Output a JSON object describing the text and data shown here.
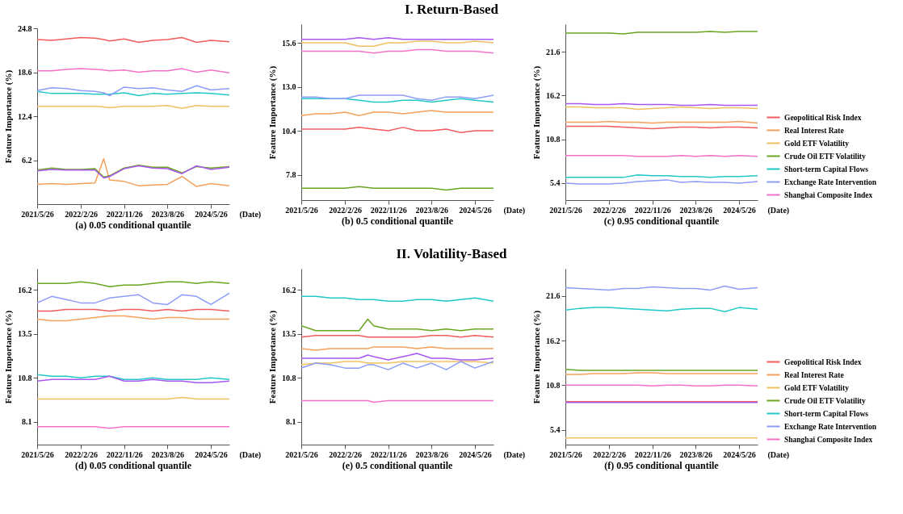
{
  "chart_data": [
    {
      "type": "line",
      "title": "(a) 0.05 conditional quantile",
      "xlabel": "(Date)",
      "ylabel": "Feature Importance (%)",
      "annotations": [
        "I. Return-Based"
      ],
      "x": [
        "2021-05-26",
        "2021-08-26",
        "2021-11-26",
        "2022-02-26",
        "2022-05-26",
        "2022-07-20",
        "2022-08-26",
        "2022-11-26",
        "2023-02-26",
        "2023-05-26",
        "2023-08-26",
        "2023-11-26",
        "2024-02-26",
        "2024-05-26",
        "2024-09-20"
      ],
      "xlim": [
        "2021-05-26",
        "2024-09-20"
      ],
      "xticks": [
        {
          "value": "2021-05-26",
          "label": "2021/5/26"
        },
        {
          "value": "2022-02-26",
          "label": "2022/2/26"
        },
        {
          "value": "2022-11-26",
          "label": "2022/11/26"
        },
        {
          "value": "2023-08-26",
          "label": "2023/8/26"
        },
        {
          "value": "2024-05-26",
          "label": "2024/5/26"
        }
      ],
      "ylim": [
        0,
        24.8
      ],
      "yticks": [
        6.2,
        12.4,
        18.6,
        24.8
      ],
      "series": [
        {
          "color": "#f25c5c",
          "values": [
            23.2,
            23.1,
            23.3,
            23.5,
            23.4,
            23.2,
            23.0,
            23.3,
            22.8,
            23.1,
            23.2,
            23.5,
            22.8,
            23.1,
            22.9
          ]
        },
        {
          "color": "#f5a05a",
          "values": [
            2.8,
            2.9,
            2.8,
            2.9,
            3.0,
            6.4,
            3.4,
            3.2,
            2.6,
            2.7,
            2.8,
            3.9,
            2.5,
            2.9,
            2.6
          ]
        },
        {
          "color": "#f0c060",
          "values": [
            13.8,
            13.8,
            13.8,
            13.8,
            13.8,
            13.7,
            13.6,
            13.8,
            13.8,
            13.8,
            13.9,
            13.5,
            13.9,
            13.8,
            13.8
          ]
        },
        {
          "color": "#6aa520",
          "values": [
            4.8,
            5.1,
            4.9,
            4.9,
            5.0,
            3.8,
            4.0,
            5.1,
            5.5,
            5.2,
            5.2,
            4.4,
            5.3,
            5.1,
            5.3
          ]
        },
        {
          "color": "#20c8c8",
          "values": [
            15.9,
            15.6,
            15.6,
            15.6,
            15.5,
            15.5,
            15.5,
            15.7,
            15.3,
            15.6,
            15.5,
            15.6,
            15.7,
            15.6,
            15.4
          ]
        },
        {
          "color": "#8c9cf8",
          "values": [
            16.0,
            16.4,
            16.3,
            16.0,
            15.9,
            15.7,
            15.3,
            16.5,
            16.3,
            16.4,
            16.1,
            15.9,
            16.7,
            16.1,
            16.3
          ]
        },
        {
          "color": "#a857f0",
          "values": [
            4.7,
            4.9,
            4.8,
            4.8,
            4.8,
            3.7,
            3.9,
            5.0,
            5.4,
            5.1,
            5.0,
            4.3,
            5.4,
            4.9,
            5.2
          ]
        },
        {
          "color": "#f570c8",
          "values": [
            18.8,
            18.8,
            19.0,
            19.1,
            19.0,
            18.9,
            18.8,
            18.9,
            18.6,
            18.8,
            18.8,
            19.1,
            18.6,
            18.9,
            18.5
          ]
        }
      ]
    },
    {
      "type": "line",
      "title": "(b) 0.5 conditional quantile",
      "xlabel": "(Date)",
      "ylabel": "Feature Importance (%)",
      "x": [
        "2021-05-26",
        "2021-08-26",
        "2021-11-26",
        "2022-02-26",
        "2022-05-26",
        "2022-08-26",
        "2022-11-26",
        "2023-02-26",
        "2023-05-26",
        "2023-08-26",
        "2023-11-26",
        "2024-02-26",
        "2024-05-26",
        "2024-09-20"
      ],
      "xlim": [
        "2021-05-26",
        "2024-09-20"
      ],
      "xticks": [
        {
          "value": "2021-05-26",
          "label": "2021/5/26"
        },
        {
          "value": "2022-02-26",
          "label": "2022/2/26"
        },
        {
          "value": "2022-11-26",
          "label": "2022/11/26"
        },
        {
          "value": "2023-08-26",
          "label": "2023/8/26"
        },
        {
          "value": "2024-05-26",
          "label": "2024/5/26"
        }
      ],
      "ylim": [
        6.3,
        16.7
      ],
      "yticks": [
        7.8,
        10.4,
        {
          "value": 13,
          "label": "13.0"
        },
        15.6
      ],
      "series": [
        {
          "color": "#f25c5c",
          "values": [
            10.5,
            10.5,
            10.5,
            10.5,
            10.6,
            10.5,
            10.4,
            10.6,
            10.4,
            10.4,
            10.5,
            10.3,
            10.4,
            10.4
          ]
        },
        {
          "color": "#f5a05a",
          "values": [
            11.3,
            11.4,
            11.4,
            11.5,
            11.3,
            11.5,
            11.5,
            11.4,
            11.5,
            11.6,
            11.5,
            11.5,
            11.5,
            11.5
          ]
        },
        {
          "color": "#f0c060",
          "values": [
            15.6,
            15.6,
            15.6,
            15.6,
            15.4,
            15.4,
            15.6,
            15.6,
            15.7,
            15.7,
            15.6,
            15.6,
            15.7,
            15.6
          ]
        },
        {
          "color": "#6aa520",
          "values": [
            7.0,
            7.0,
            7.0,
            7.0,
            7.1,
            7.0,
            7.0,
            7.0,
            7.0,
            7.0,
            6.9,
            7.0,
            7.0,
            7.0
          ]
        },
        {
          "color": "#20c8c8",
          "values": [
            12.3,
            12.3,
            12.3,
            12.3,
            12.2,
            12.1,
            12.1,
            12.2,
            12.2,
            12.1,
            12.2,
            12.3,
            12.2,
            12.1
          ]
        },
        {
          "color": "#8c9cf8",
          "values": [
            12.4,
            12.4,
            12.3,
            12.3,
            12.5,
            12.5,
            12.5,
            12.5,
            12.3,
            12.2,
            12.4,
            12.4,
            12.3,
            12.5
          ]
        },
        {
          "color": "#a857f0",
          "values": [
            15.8,
            15.8,
            15.8,
            15.8,
            15.9,
            15.8,
            15.9,
            15.8,
            15.8,
            15.8,
            15.8,
            15.8,
            15.8,
            15.8
          ]
        },
        {
          "color": "#f570c8",
          "values": [
            15.1,
            15.1,
            15.1,
            15.1,
            15.1,
            15.0,
            15.1,
            15.1,
            15.2,
            15.2,
            15.1,
            15.1,
            15.1,
            15.0
          ]
        }
      ]
    },
    {
      "type": "line",
      "title": "(c) 0.95 conditional quantile",
      "xlabel": "(Date)",
      "ylabel": "Feature Importance (%)",
      "legend": "right",
      "x": [
        "2021-05-26",
        "2021-08-26",
        "2021-11-26",
        "2022-02-26",
        "2022-05-26",
        "2022-08-26",
        "2022-11-26",
        "2023-02-26",
        "2023-05-26",
        "2023-08-26",
        "2023-11-26",
        "2024-02-26",
        "2024-05-26",
        "2024-09-20"
      ],
      "xlim": [
        "2021-05-26",
        "2024-09-20"
      ],
      "xticks": [
        {
          "value": "2021-05-26",
          "label": "2021/5/26"
        },
        {
          "value": "2022-02-26",
          "label": "2022/2/26"
        },
        {
          "value": "2022-11-26",
          "label": "2022/11/26"
        },
        {
          "value": "2023-08-26",
          "label": "2023/8/26"
        },
        {
          "value": "2024-05-26",
          "label": "2024/5/26"
        }
      ],
      "ylim": [
        3.3,
        25.0
      ],
      "yticks": [
        5.4,
        10.8,
        16.2,
        21.6
      ],
      "series": [
        {
          "name": "Geopolitical Risk Index",
          "color": "#f25c5c",
          "values": [
            12.4,
            12.4,
            12.4,
            12.4,
            12.3,
            12.2,
            12.1,
            12.2,
            12.3,
            12.3,
            12.2,
            12.3,
            12.3,
            12.2
          ]
        },
        {
          "name": "Real Interest Rate",
          "color": "#f5a05a",
          "values": [
            12.9,
            12.9,
            12.9,
            13.0,
            12.9,
            12.9,
            12.8,
            12.9,
            12.9,
            12.9,
            12.9,
            12.9,
            13.0,
            12.8
          ]
        },
        {
          "name": "Gold ETF Volatility",
          "color": "#f0c060",
          "values": [
            14.8,
            14.8,
            14.7,
            14.7,
            14.7,
            14.5,
            14.6,
            14.7,
            14.8,
            14.7,
            14.6,
            14.7,
            14.7,
            14.6
          ]
        },
        {
          "name": "Crude Oil ETF Volatility",
          "color": "#6aa520",
          "values": [
            23.9,
            23.9,
            23.9,
            23.9,
            23.8,
            24.0,
            24.0,
            24.0,
            24.0,
            24.0,
            24.1,
            24.0,
            24.1,
            24.1
          ]
        },
        {
          "name": "Short-term Capital Flows",
          "color": "#20c8c8",
          "values": [
            6.1,
            6.1,
            6.1,
            6.1,
            6.1,
            6.4,
            6.3,
            6.3,
            6.2,
            6.2,
            6.1,
            6.2,
            6.2,
            6.3
          ]
        },
        {
          "name": "Exchange Rate Intervention",
          "color": "#8c9cf8",
          "values": [
            5.4,
            5.3,
            5.3,
            5.3,
            5.4,
            5.6,
            5.7,
            5.8,
            5.5,
            5.6,
            5.5,
            5.5,
            5.4,
            5.6
          ]
        },
        {
          "color": "#a857f0",
          "values": [
            15.2,
            15.2,
            15.1,
            15.1,
            15.2,
            15.1,
            15.1,
            15.1,
            15.0,
            15.0,
            15.1,
            15.0,
            15.0,
            15.0
          ]
        },
        {
          "name": "Shanghai Composite Index",
          "color": "#f570c8",
          "values": [
            8.8,
            8.8,
            8.8,
            8.8,
            8.8,
            8.7,
            8.7,
            8.7,
            8.8,
            8.7,
            8.8,
            8.7,
            8.8,
            8.7
          ]
        }
      ]
    },
    {
      "type": "line",
      "title": "(d) 0.05 conditional quantile",
      "xlabel": "(Date)",
      "ylabel": "Feature Importance (%)",
      "annotations": [
        "II. Volatility-Based"
      ],
      "x": [
        "2021-05-26",
        "2021-08-26",
        "2021-11-26",
        "2022-02-26",
        "2022-05-26",
        "2022-08-26",
        "2022-11-26",
        "2023-02-26",
        "2023-05-26",
        "2023-08-26",
        "2023-11-26",
        "2024-02-26",
        "2024-05-26",
        "2024-09-20"
      ],
      "xlim": [
        "2021-05-26",
        "2024-09-20"
      ],
      "xticks": [
        {
          "value": "2021-05-26",
          "label": "2021/5/26"
        },
        {
          "value": "2022-02-26",
          "label": "2022/2/26"
        },
        {
          "value": "2022-11-26",
          "label": "2022/11/26"
        },
        {
          "value": "2023-08-26",
          "label": "2023/8/26"
        },
        {
          "value": "2024-05-26",
          "label": "2024/5/26"
        }
      ],
      "ylim": [
        6.7,
        17.5
      ],
      "yticks": [
        8.1,
        10.8,
        13.5,
        16.2
      ],
      "series": [
        {
          "color": "#f25c5c",
          "values": [
            14.9,
            14.9,
            15.0,
            15.0,
            15.0,
            14.9,
            15.0,
            15.0,
            14.9,
            15.0,
            14.9,
            15.0,
            15.0,
            14.9
          ]
        },
        {
          "color": "#f5a05a",
          "values": [
            14.4,
            14.3,
            14.3,
            14.4,
            14.5,
            14.6,
            14.6,
            14.5,
            14.4,
            14.5,
            14.5,
            14.4,
            14.4,
            14.4
          ]
        },
        {
          "color": "#f0c060",
          "values": [
            9.5,
            9.5,
            9.5,
            9.5,
            9.5,
            9.5,
            9.5,
            9.5,
            9.5,
            9.5,
            9.6,
            9.5,
            9.5,
            9.5
          ]
        },
        {
          "color": "#6aa520",
          "values": [
            16.6,
            16.6,
            16.6,
            16.7,
            16.6,
            16.4,
            16.5,
            16.5,
            16.6,
            16.7,
            16.7,
            16.6,
            16.7,
            16.6
          ]
        },
        {
          "color": "#20c8c8",
          "values": [
            11.0,
            10.9,
            10.9,
            10.8,
            10.9,
            10.9,
            10.7,
            10.7,
            10.8,
            10.7,
            10.7,
            10.7,
            10.8,
            10.7
          ]
        },
        {
          "color": "#8c9cf8",
          "values": [
            15.4,
            15.8,
            15.6,
            15.4,
            15.4,
            15.7,
            15.8,
            15.9,
            15.4,
            15.3,
            15.9,
            15.8,
            15.3,
            16.0
          ]
        },
        {
          "color": "#a857f0",
          "values": [
            10.6,
            10.7,
            10.7,
            10.7,
            10.7,
            10.9,
            10.6,
            10.6,
            10.7,
            10.6,
            10.6,
            10.5,
            10.5,
            10.6
          ]
        },
        {
          "color": "#f570c8",
          "values": [
            7.8,
            7.8,
            7.8,
            7.8,
            7.8,
            7.7,
            7.8,
            7.8,
            7.8,
            7.8,
            7.8,
            7.8,
            7.8,
            7.8
          ]
        }
      ]
    },
    {
      "type": "line",
      "title": "(e) 0.5 conditional quantile",
      "xlabel": "(Date)",
      "ylabel": "Feature Importance (%)",
      "x": [
        "2021-05-26",
        "2021-08-26",
        "2021-11-26",
        "2022-02-26",
        "2022-05-26",
        "2022-07-20",
        "2022-08-26",
        "2022-11-26",
        "2023-02-26",
        "2023-05-26",
        "2023-08-26",
        "2023-11-26",
        "2024-02-26",
        "2024-05-26",
        "2024-09-20"
      ],
      "xlim": [
        "2021-05-26",
        "2024-09-20"
      ],
      "xticks": [
        {
          "value": "2021-05-26",
          "label": "2021/5/26"
        },
        {
          "value": "2022-02-26",
          "label": "2022/2/26"
        },
        {
          "value": "2022-11-26",
          "label": "2022/11/26"
        },
        {
          "value": "2023-08-26",
          "label": "2023/8/26"
        },
        {
          "value": "2024-05-26",
          "label": "2024/5/26"
        }
      ],
      "ylim": [
        6.7,
        17.5
      ],
      "yticks": [
        8.1,
        10.8,
        13.5,
        16.2
      ],
      "series": [
        {
          "color": "#f25c5c",
          "values": [
            13.3,
            13.4,
            13.4,
            13.4,
            13.4,
            13.3,
            13.3,
            13.3,
            13.3,
            13.3,
            13.4,
            13.4,
            13.3,
            13.4,
            13.3
          ]
        },
        {
          "color": "#f5a05a",
          "values": [
            12.6,
            12.5,
            12.6,
            12.6,
            12.6,
            12.6,
            12.7,
            12.7,
            12.7,
            12.6,
            12.7,
            12.6,
            12.6,
            12.6,
            12.6
          ]
        },
        {
          "color": "#f0c060",
          "values": [
            11.6,
            11.7,
            11.7,
            11.8,
            11.8,
            11.7,
            11.7,
            11.7,
            11.8,
            11.8,
            11.8,
            11.8,
            11.8,
            11.8,
            11.7
          ]
        },
        {
          "color": "#6aa520",
          "values": [
            14.0,
            13.7,
            13.7,
            13.7,
            13.7,
            14.4,
            14.0,
            13.8,
            13.8,
            13.8,
            13.7,
            13.8,
            13.7,
            13.8,
            13.8
          ]
        },
        {
          "color": "#20c8c8",
          "values": [
            15.8,
            15.8,
            15.7,
            15.7,
            15.6,
            15.6,
            15.6,
            15.5,
            15.5,
            15.6,
            15.6,
            15.5,
            15.6,
            15.7,
            15.5
          ]
        },
        {
          "color": "#8c9cf8",
          "values": [
            11.4,
            11.7,
            11.6,
            11.4,
            11.4,
            11.6,
            11.6,
            11.3,
            11.7,
            11.4,
            11.7,
            11.3,
            11.8,
            11.4,
            11.8
          ]
        },
        {
          "color": "#a857f0",
          "values": [
            12.0,
            12.0,
            12.0,
            12.0,
            12.0,
            12.2,
            12.1,
            11.9,
            12.1,
            12.3,
            12.0,
            12.0,
            11.9,
            11.9,
            12.0
          ]
        },
        {
          "color": "#f570c8",
          "values": [
            9.4,
            9.4,
            9.4,
            9.4,
            9.4,
            9.4,
            9.3,
            9.4,
            9.4,
            9.4,
            9.4,
            9.4,
            9.4,
            9.4,
            9.4
          ]
        }
      ]
    },
    {
      "type": "line",
      "title": "(f) 0.95 conditional quantile",
      "xlabel": "(Date)",
      "ylabel": "Feature Importance (%)",
      "legend": "right",
      "x": [
        "2021-05-26",
        "2021-08-26",
        "2021-11-26",
        "2022-02-26",
        "2022-05-26",
        "2022-08-26",
        "2022-11-26",
        "2023-02-26",
        "2023-05-26",
        "2023-08-26",
        "2023-11-26",
        "2024-02-26",
        "2024-05-26",
        "2024-09-20"
      ],
      "xlim": [
        "2021-05-26",
        "2024-09-20"
      ],
      "xticks": [
        {
          "value": "2021-05-26",
          "label": "2021/5/26"
        },
        {
          "value": "2022-02-26",
          "label": "2022/2/26"
        },
        {
          "value": "2022-11-26",
          "label": "2022/11/26"
        },
        {
          "value": "2023-08-26",
          "label": "2023/8/26"
        },
        {
          "value": "2024-05-26",
          "label": "2024/5/26"
        }
      ],
      "ylim": [
        3.6,
        24.9
      ],
      "yticks": [
        5.4,
        10.8,
        16.2,
        21.6
      ],
      "series": [
        {
          "name": "Geopolitical Risk Index",
          "color": "#f25c5c",
          "values": [
            8.8,
            8.8,
            8.8,
            8.8,
            8.8,
            8.8,
            8.8,
            8.8,
            8.8,
            8.8,
            8.8,
            8.8,
            8.8,
            8.8
          ]
        },
        {
          "name": "Real Interest Rate",
          "color": "#f5a05a",
          "values": [
            12.1,
            12.1,
            12.2,
            12.2,
            12.2,
            12.3,
            12.3,
            12.2,
            12.2,
            12.2,
            12.2,
            12.2,
            12.2,
            12.2
          ]
        },
        {
          "name": "Gold ETF Volatility",
          "color": "#f0c060",
          "values": [
            4.4,
            4.4,
            4.4,
            4.4,
            4.4,
            4.4,
            4.4,
            4.4,
            4.4,
            4.4,
            4.4,
            4.4,
            4.4,
            4.4
          ]
        },
        {
          "name": "Crude Oil ETF Volatility",
          "color": "#6aa520",
          "values": [
            12.7,
            12.6,
            12.6,
            12.6,
            12.6,
            12.6,
            12.6,
            12.6,
            12.6,
            12.6,
            12.6,
            12.6,
            12.6,
            12.6
          ]
        },
        {
          "name": "Short-term Capital Flows",
          "color": "#20c8c8",
          "values": [
            19.9,
            20.1,
            20.2,
            20.2,
            20.1,
            20.0,
            19.9,
            19.8,
            20.0,
            20.1,
            20.1,
            19.7,
            20.2,
            20.0
          ]
        },
        {
          "name": "Exchange Rate Intervention",
          "color": "#8c9cf8",
          "values": [
            22.6,
            22.5,
            22.4,
            22.3,
            22.5,
            22.5,
            22.7,
            22.6,
            22.5,
            22.5,
            22.3,
            22.8,
            22.4,
            22.6
          ]
        },
        {
          "color": "#a857f0",
          "values": [
            8.7,
            8.7,
            8.7,
            8.7,
            8.7,
            8.7,
            8.7,
            8.7,
            8.7,
            8.7,
            8.7,
            8.7,
            8.7,
            8.7
          ]
        },
        {
          "name": "Shanghai Composite Index",
          "color": "#f570c8",
          "values": [
            10.8,
            10.8,
            10.8,
            10.8,
            10.8,
            10.8,
            10.7,
            10.8,
            10.8,
            10.7,
            10.7,
            10.8,
            10.8,
            10.7
          ]
        }
      ]
    }
  ]
}
